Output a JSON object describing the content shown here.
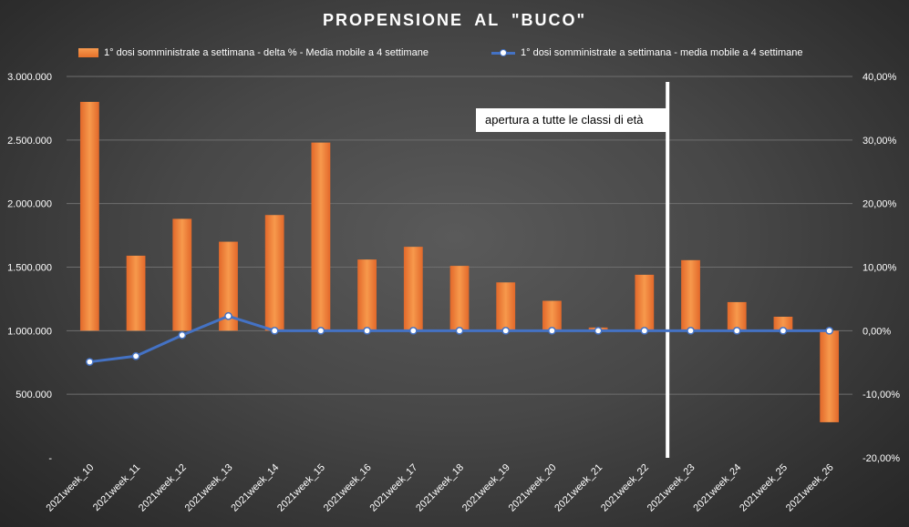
{
  "chart_data": {
    "type": "bar",
    "title": "PROPENSIONE  AL \"BUCO\"",
    "categories": [
      "2021week_10",
      "2021week_11",
      "2021week_12",
      "2021week_13",
      "2021week_14",
      "2021week_15",
      "2021week_16",
      "2021week_17",
      "2021week_18",
      "2021week_19",
      "2021week_20",
      "2021week_21",
      "2021week_22",
      "2021week_23",
      "2021week_24",
      "2021week_25",
      "2021week_26"
    ],
    "series": [
      {
        "name": "1° dosi somministrate a settimana - delta % - Media mobile a 4 settimane",
        "type": "bar",
        "axis": "right",
        "values": [
          36.0,
          11.8,
          17.6,
          14.0,
          18.2,
          29.6,
          11.2,
          13.2,
          10.2,
          7.6,
          4.7,
          0.5,
          8.8,
          11.1,
          4.5,
          2.2,
          -14.4
        ]
      },
      {
        "name": "1° dosi somministrate a settimana - media mobile a 4 settimane",
        "type": "line",
        "axis": "left",
        "values": [
          755000,
          800000,
          965000,
          1115000,
          1000000,
          1000000,
          1000000,
          1000000,
          1000000,
          1000000,
          1000000,
          1000000,
          1000000,
          1000000,
          1000000,
          1000000,
          1000000
        ]
      }
    ],
    "left_axis": {
      "ylim": [
        0,
        3000000
      ],
      "ticks": [
        "-",
        "500.000",
        "1.000.000",
        "1.500.000",
        "2.000.000",
        "2.500.000",
        "3.000.000"
      ]
    },
    "right_axis": {
      "ylim": [
        -20,
        40
      ],
      "ticks": [
        "-20,00%",
        "-10,00%",
        "0,00%",
        "10,00%",
        "20,00%",
        "30,00%",
        "40,00%"
      ]
    },
    "annotation": "apertura a  tutte le classi di età",
    "annotation_at_category": "2021week_22",
    "grid": true,
    "legend": "top",
    "colors": {
      "bar": "#ed7d31",
      "line": "#4472c4",
      "marker_fill": "#ffffff",
      "grid": "#6e6e6e",
      "divider": "#ffffff"
    }
  }
}
